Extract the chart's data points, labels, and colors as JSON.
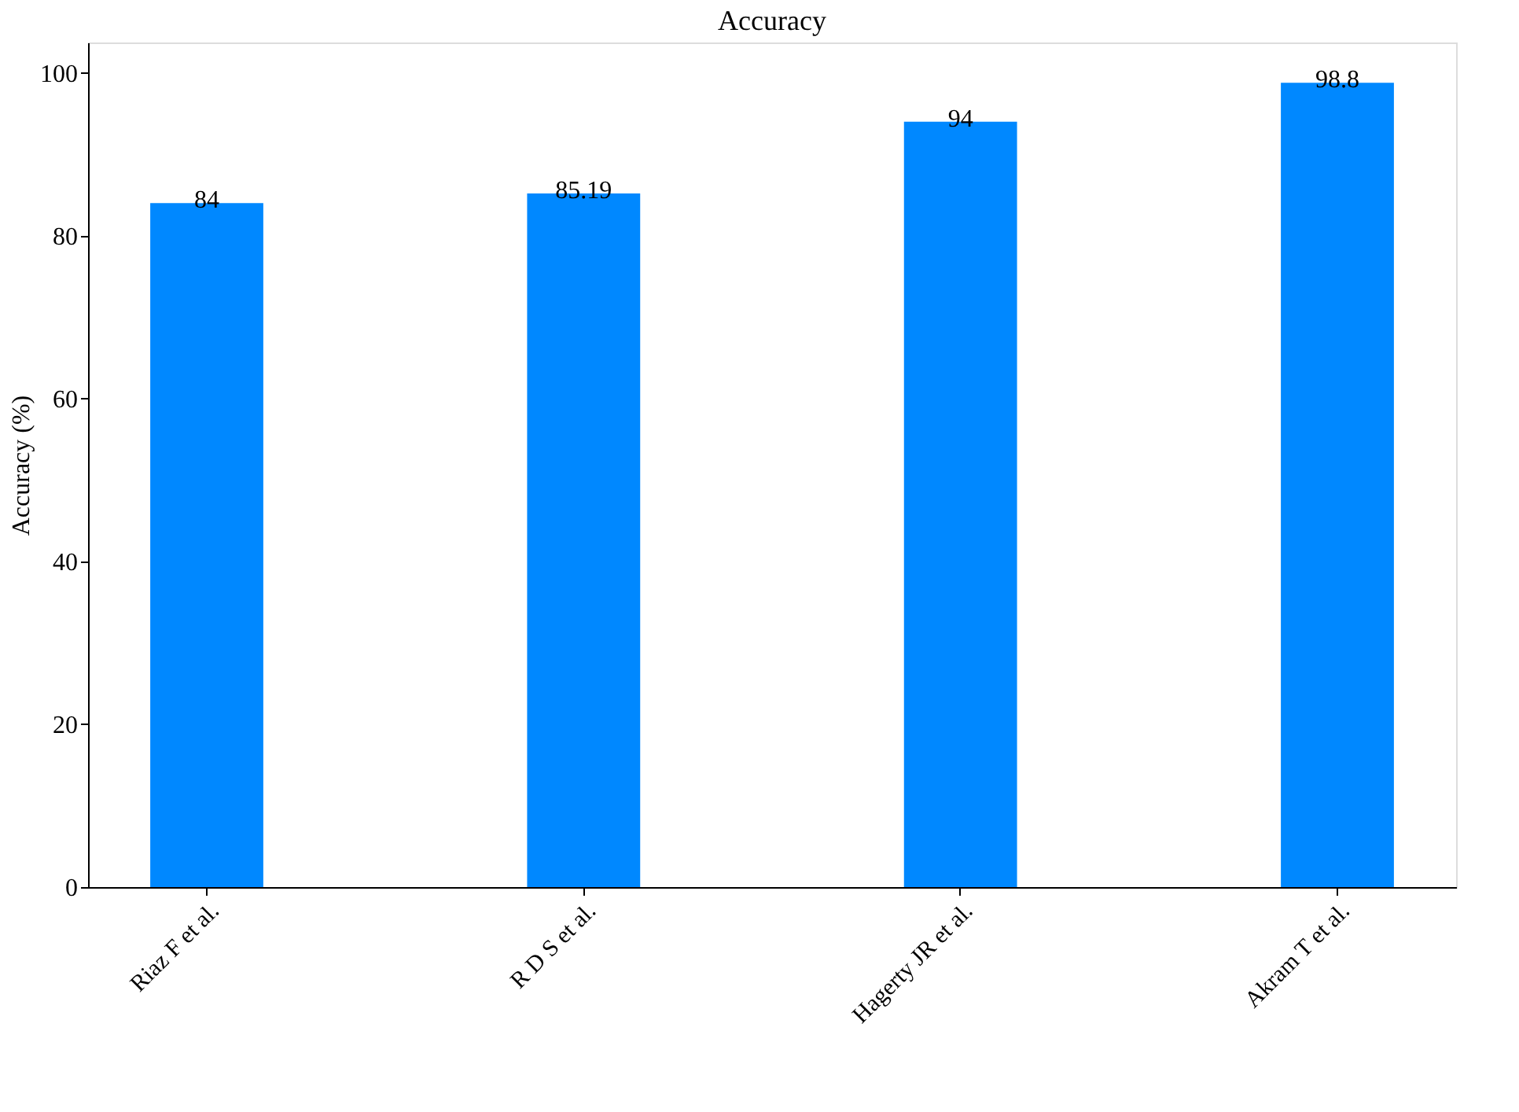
{
  "chart_data": {
    "type": "bar",
    "title": "Accuracy",
    "ylabel": "Accuracy (%)",
    "categories": [
      "Riaz F et al.",
      "R D S et al.",
      "Hagerty JR et al.",
      "Akram T et al."
    ],
    "values": [
      84,
      85.19,
      94,
      98.8
    ],
    "color": "#0088ff",
    "ylim": [
      0,
      103.74
    ],
    "yticks": [
      0,
      20,
      40,
      60,
      80,
      100
    ],
    "grid": false,
    "data_labels": true
  }
}
